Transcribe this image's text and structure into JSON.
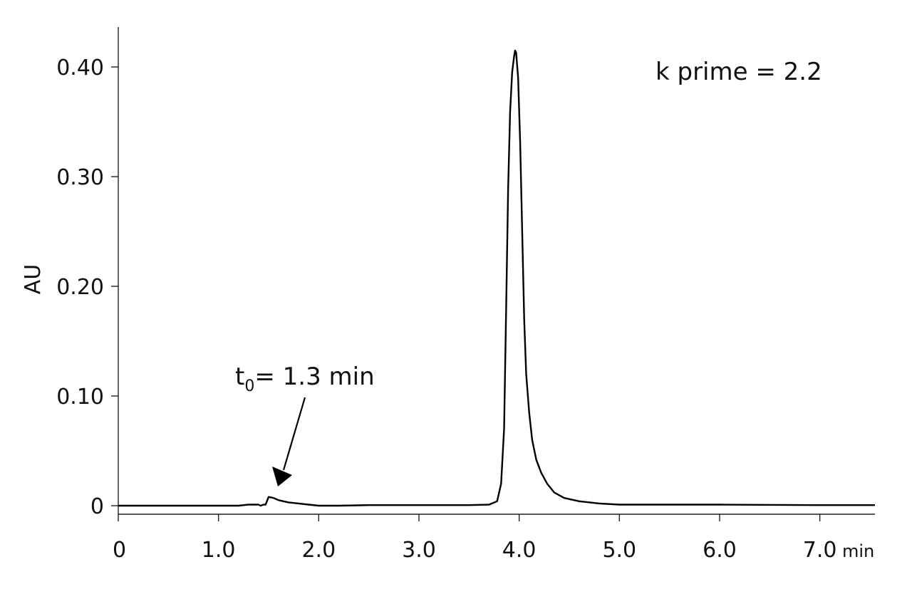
{
  "chart_data": {
    "type": "line",
    "ylabel": "AU",
    "xlabel": "",
    "xlim": [
      0,
      7.55
    ],
    "ylim": [
      0,
      0.44
    ],
    "x_ticks": [
      {
        "value": 0,
        "label": "0"
      },
      {
        "value": 1.0,
        "label": "1.0"
      },
      {
        "value": 2.0,
        "label": "2.0"
      },
      {
        "value": 3.0,
        "label": "3.0"
      },
      {
        "value": 4.0,
        "label": "4.0"
      },
      {
        "value": 5.0,
        "label": "5.0"
      },
      {
        "value": 6.0,
        "label": "6.0"
      },
      {
        "value": 7.0,
        "label": "7.0"
      }
    ],
    "x_unit_label": "min",
    "y_ticks": [
      {
        "value": 0,
        "label": "0"
      },
      {
        "value": 0.1,
        "label": "0.10"
      },
      {
        "value": 0.2,
        "label": "0.20"
      },
      {
        "value": 0.3,
        "label": "0.30"
      },
      {
        "value": 0.4,
        "label": "0.40"
      }
    ],
    "series": [
      {
        "x": [
          0,
          1.2,
          1.3,
          1.4,
          1.42,
          1.45,
          1.47,
          1.5,
          1.55,
          1.6,
          1.7,
          1.8,
          1.9,
          2.0,
          2.2,
          2.5,
          3.0,
          3.5,
          3.7,
          3.78,
          3.82,
          3.85,
          3.87,
          3.89,
          3.91,
          3.93,
          3.95,
          3.96,
          3.97,
          3.99,
          4.01,
          4.03,
          4.05,
          4.07,
          4.1,
          4.13,
          4.17,
          4.22,
          4.28,
          4.35,
          4.45,
          4.6,
          4.8,
          5.0,
          6.0,
          7.0,
          7.55
        ],
        "y": [
          0,
          0,
          0.001,
          0.001,
          0.0,
          0.001,
          0.001,
          0.008,
          0.007,
          0.005,
          0.003,
          0.002,
          0.001,
          0.0,
          0.0,
          0.0005,
          0.0005,
          0.0005,
          0.001,
          0.004,
          0.02,
          0.07,
          0.18,
          0.29,
          0.36,
          0.395,
          0.41,
          0.415,
          0.413,
          0.39,
          0.33,
          0.25,
          0.17,
          0.12,
          0.085,
          0.06,
          0.042,
          0.03,
          0.02,
          0.012,
          0.007,
          0.004,
          0.002,
          0.001,
          0.001,
          0.0005,
          0.0005
        ]
      }
    ],
    "annotations": {
      "kprime": "k prime = 2.2",
      "t0_main": "t",
      "t0_sub": "0",
      "t0_rest": "= 1.3 min",
      "t0_arrow_at": [
        1.6,
        0.012
      ]
    }
  }
}
